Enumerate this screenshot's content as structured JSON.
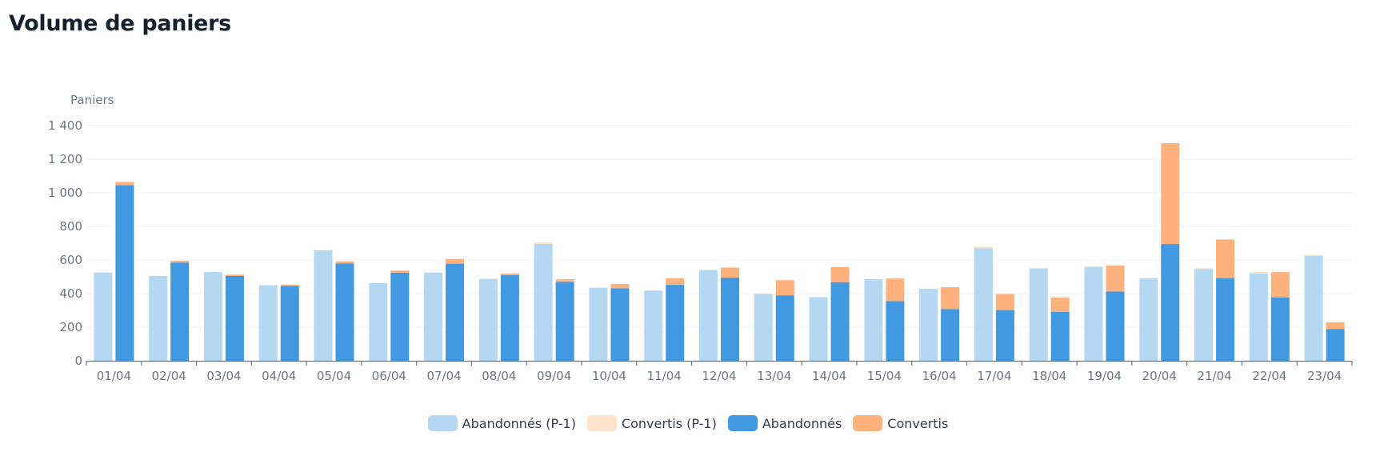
{
  "title": "Volume de paniers",
  "chart_data": {
    "type": "bar",
    "ylabel": "Paniers",
    "ylim": [
      0,
      1400
    ],
    "yticks": [
      0,
      200,
      400,
      600,
      800,
      1000,
      1200,
      1400
    ],
    "ytick_labels": [
      "0",
      "200",
      "400",
      "600",
      "800",
      "1 000",
      "1 200",
      "1 400"
    ],
    "grid": true,
    "legend_position": "bottom-center",
    "categories": [
      "01/04",
      "02/04",
      "03/04",
      "04/04",
      "05/04",
      "06/04",
      "07/04",
      "08/04",
      "09/04",
      "10/04",
      "11/04",
      "12/04",
      "13/04",
      "14/04",
      "15/04",
      "16/04",
      "17/04",
      "18/04",
      "19/04",
      "20/04",
      "21/04",
      "22/04",
      "23/04"
    ],
    "stacks": [
      {
        "stack": "P-1",
        "series": [
          {
            "name": "Abandonnés (P-1)",
            "color": "#b4d7f2",
            "values": [
              525,
              505,
              528,
              450,
              658,
              462,
              525,
              488,
              695,
              435,
              418,
              540,
              398,
              378,
              485,
              428,
              670,
              550,
              558,
              490,
              545,
              520,
              625
            ]
          },
          {
            "name": "Convertis (P-1)",
            "color": "#fde2cc",
            "values": [
              0,
              0,
              0,
              0,
              0,
              0,
              0,
              0,
              10,
              0,
              0,
              0,
              0,
              2,
              0,
              0,
              10,
              0,
              6,
              0,
              7,
              8,
              6
            ]
          }
        ]
      },
      {
        "stack": "current",
        "series": [
          {
            "name": "Abandonnés",
            "color": "#4199e1",
            "values": [
              1045,
              585,
              505,
              445,
              580,
              525,
              578,
              510,
              470,
              432,
              452,
              495,
              390,
              468,
              355,
              308,
              302,
              292,
              412,
              695,
              492,
              378,
              190
            ]
          },
          {
            "name": "Convertis",
            "color": "#fdb17d",
            "values": [
              20,
              10,
              8,
              8,
              12,
              12,
              28,
              10,
              15,
              25,
              40,
              60,
              90,
              90,
              135,
              130,
              95,
              85,
              155,
              600,
              230,
              150,
              40
            ]
          }
        ]
      }
    ]
  }
}
